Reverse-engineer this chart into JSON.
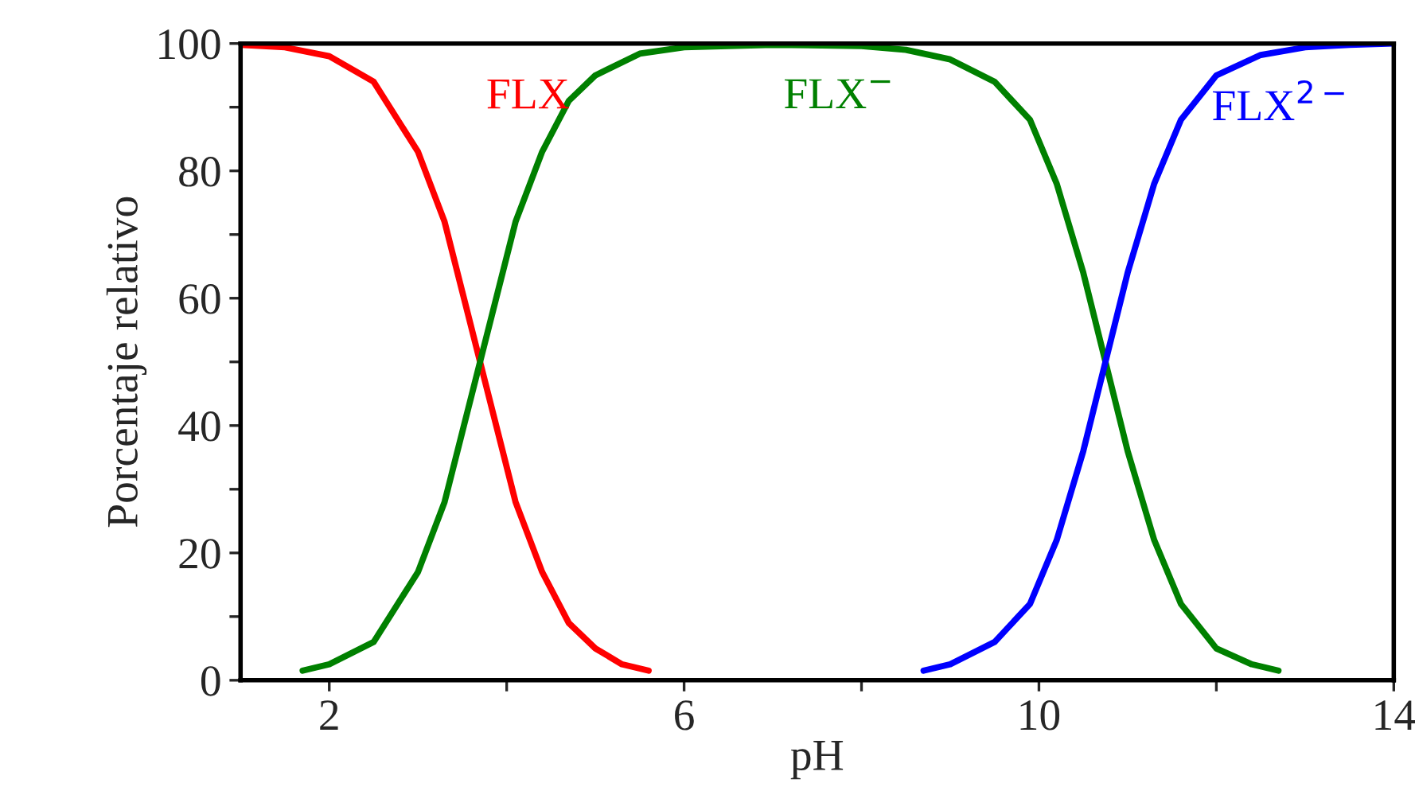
{
  "chart_data": {
    "type": "line",
    "xlabel": "pH",
    "ylabel": "Porcentaje relativo",
    "xlim": [
      1,
      14
    ],
    "xticks": [
      2,
      {
        "value": 4,
        "label": null
      },
      6,
      {
        "value": 8,
        "label": null
      },
      10,
      {
        "value": 12,
        "label": null
      },
      14
    ],
    "ylim": [
      0,
      100
    ],
    "yticks": [
      0,
      {
        "value": 10,
        "label": null
      },
      20,
      {
        "value": 30,
        "label": null
      },
      40,
      {
        "value": 50,
        "label": null
      },
      60,
      {
        "value": 70,
        "label": null
      },
      80,
      {
        "value": 90,
        "label": null
      },
      100
    ],
    "grid": false,
    "legend": false,
    "marker": "none",
    "line_style": "solid",
    "series": [
      {
        "name": "FLX",
        "color": "#ff0000",
        "x": [
          1.0,
          1.5,
          2.0,
          2.5,
          3.0,
          3.3,
          3.5,
          3.7,
          3.9,
          4.1,
          4.4,
          4.7,
          5.0,
          5.3,
          5.6
        ],
        "values": [
          99.8,
          99.4,
          98,
          94,
          83,
          72,
          61,
          50,
          39,
          28,
          17,
          9,
          5,
          2.5,
          1.5
        ]
      },
      {
        "name": "FLX$^{−}$",
        "color": "#008000",
        "x": [
          1.7,
          2.0,
          2.5,
          3.0,
          3.3,
          3.5,
          3.7,
          3.9,
          4.1,
          4.4,
          4.7,
          5.0,
          5.5,
          6.0,
          7.0,
          8.0,
          8.5,
          9.0,
          9.5,
          9.9,
          10.2,
          10.5,
          10.75,
          11.0,
          11.3,
          11.6,
          12.0,
          12.4,
          12.7
        ],
        "values": [
          1.5,
          2.5,
          6,
          17,
          28,
          39,
          50,
          61,
          72,
          83,
          91,
          95,
          98.4,
          99.4,
          99.8,
          99.6,
          99,
          97.5,
          94,
          88,
          78,
          64,
          50,
          36,
          22,
          12,
          5,
          2.5,
          1.5
        ]
      },
      {
        "name": "FLX$^{2−}$",
        "color": "#0000ff",
        "x": [
          8.7,
          9.0,
          9.5,
          9.9,
          10.2,
          10.5,
          10.75,
          11.0,
          11.3,
          11.6,
          12.0,
          12.5,
          13.0,
          13.5,
          14.0
        ],
        "values": [
          1.5,
          2.5,
          6,
          12,
          22,
          36,
          50,
          64,
          78,
          88,
          95,
          98.2,
          99.4,
          99.8,
          100
        ]
      }
    ]
  }
}
